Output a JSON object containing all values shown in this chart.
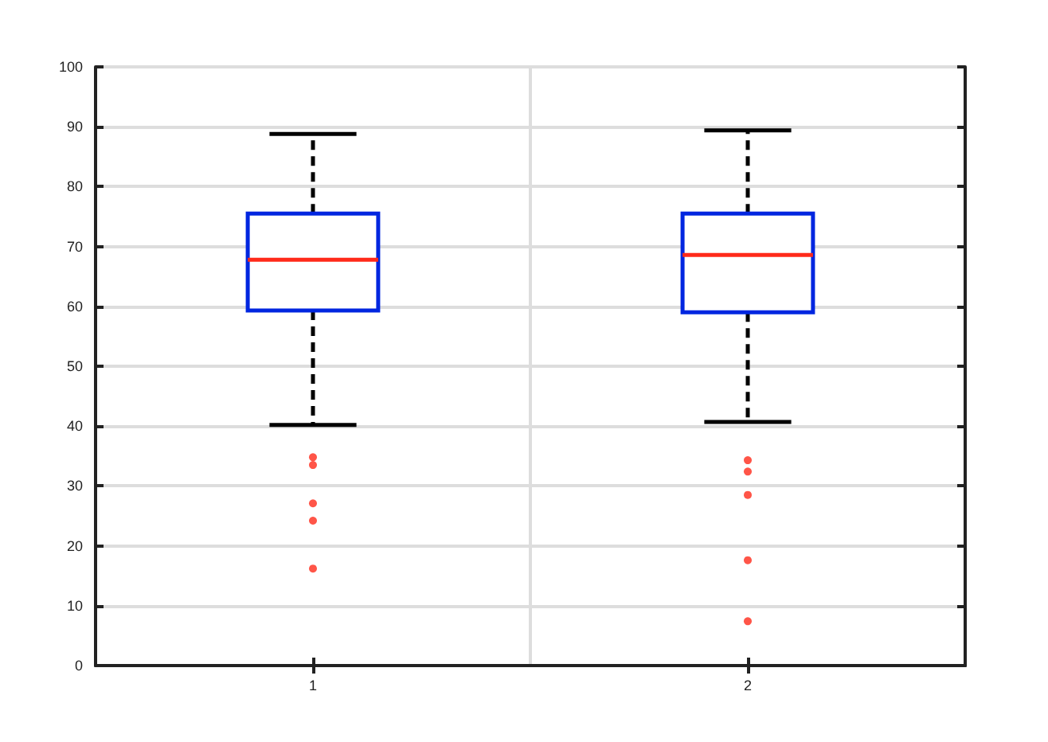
{
  "chart_data": {
    "type": "box",
    "categories": [
      "1",
      "2"
    ],
    "boxes": [
      {
        "low": 40.2,
        "q1": 59.3,
        "median": 67.8,
        "q3": 75.5,
        "high": 88.8,
        "outliers": [
          34.8,
          33.5,
          27.1,
          24.2,
          16.2
        ]
      },
      {
        "low": 40.7,
        "q1": 59.0,
        "median": 68.6,
        "q3": 75.5,
        "high": 89.4,
        "outliers": [
          34.3,
          32.4,
          28.5,
          17.6,
          7.4
        ]
      }
    ],
    "color": "#0026e0",
    "ylim": [
      0,
      100
    ],
    "yticks": [
      0,
      10,
      20,
      30,
      40,
      50,
      60,
      70,
      80,
      90,
      100
    ],
    "grid": true,
    "line_style": "dashed"
  }
}
